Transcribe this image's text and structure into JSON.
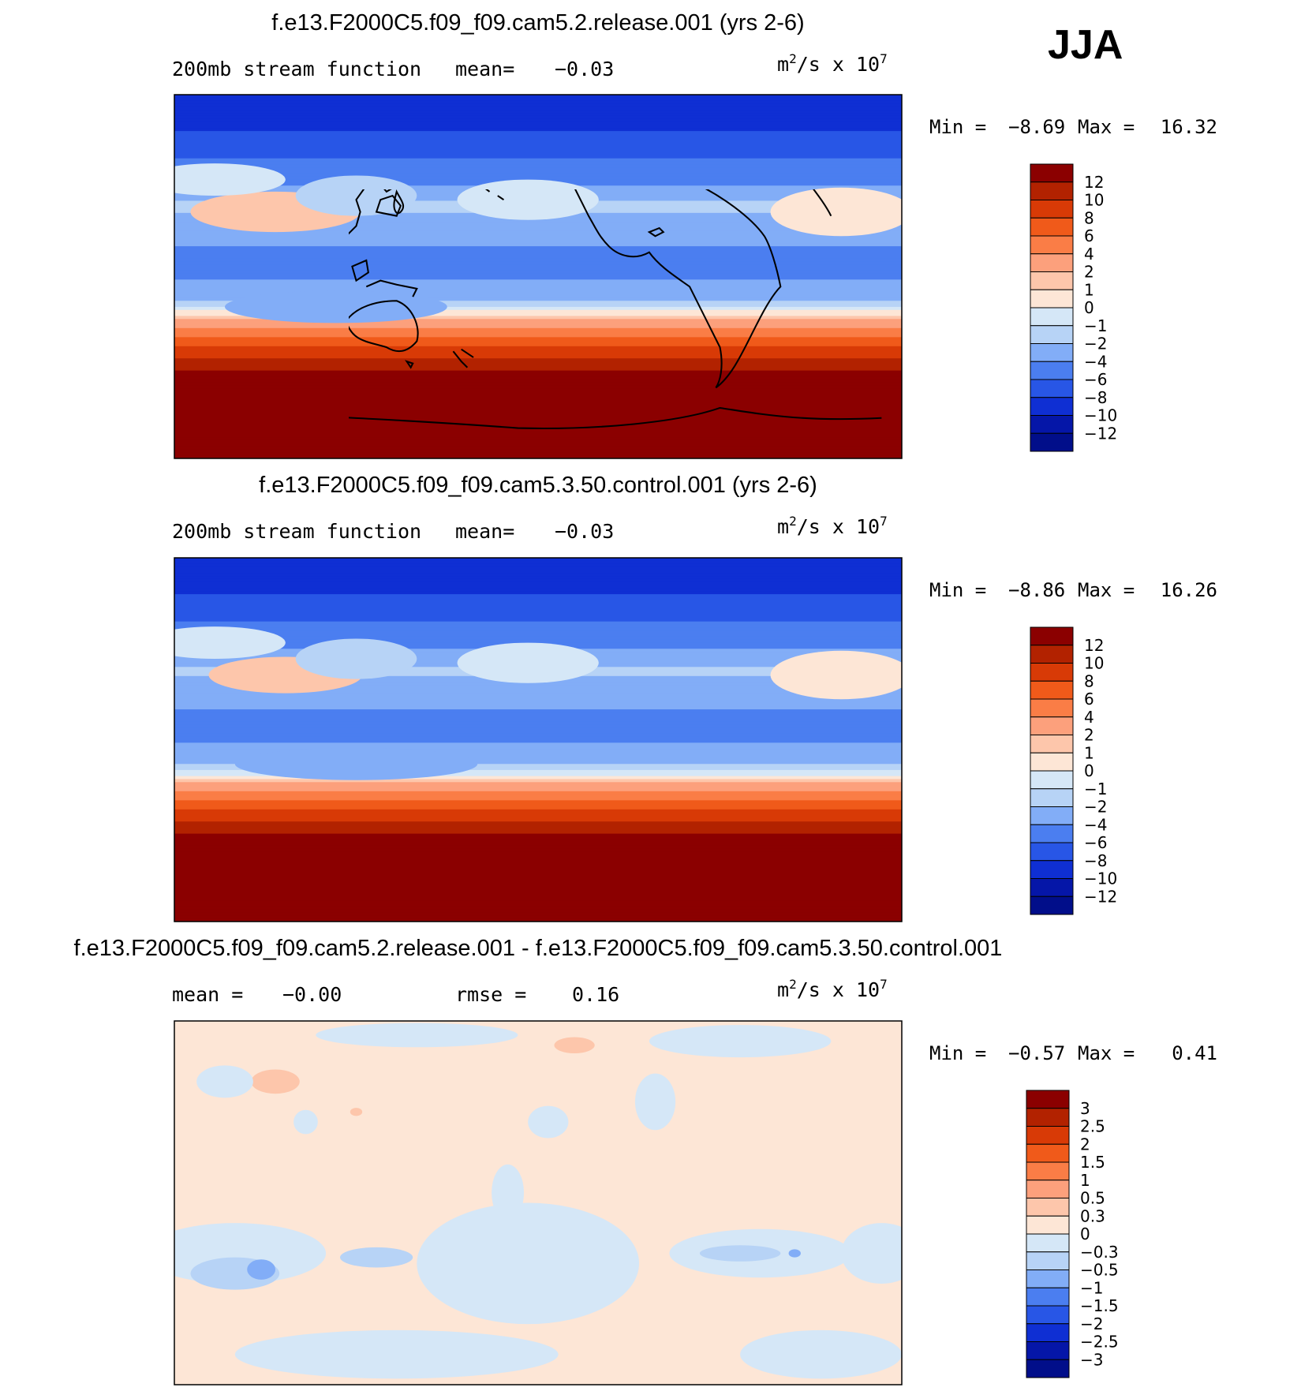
{
  "season": "JJA",
  "chart_data": [
    {
      "type": "heatmap",
      "title": "f.e13.F2000C5.f09_f09.cam5.2.release.001 (yrs 2-6)",
      "subtitle_left": "200mb stream function",
      "mean_label": "mean=",
      "mean_value": "−0.03",
      "units_base": "m",
      "units_exp1": "2",
      "units_mid": "/s x 10",
      "units_exp2": "7",
      "min_label": "Min =",
      "min_value": "−8.69",
      "max_label": "Max =",
      "max_value": "16.32",
      "xrange": [
        30,
        390
      ],
      "yrange": [
        -90,
        90
      ],
      "levels": [
        "12",
        "10",
        "8",
        "6",
        "4",
        "2",
        "1",
        "0",
        "−1",
        "−2",
        "−4",
        "−6",
        "−8",
        "−10",
        "−12"
      ],
      "colors": [
        "#8b0000",
        "#b22200",
        "#d83a06",
        "#f05a1a",
        "#fa7d46",
        "#fca07c",
        "#fdc6ab",
        "#fde6d6",
        "#d5e7f7",
        "#b7d3f6",
        "#82adf7",
        "#4b7ef0",
        "#2856e6",
        "#0f2fd3",
        "#0516a8",
        "#010e8a"
      ],
      "zonal_profile_lat": [
        90,
        75,
        65,
        55,
        45,
        35,
        25,
        15,
        5,
        -5,
        -15,
        -20,
        -25,
        -30,
        -35,
        -40,
        -45,
        -50,
        -55,
        -60,
        -90
      ],
      "zonal_profile_val": [
        -9,
        -8.5,
        -7,
        -5.5,
        -4,
        -1.5,
        -3,
        -4,
        -5,
        -3.5,
        -1.2,
        1.5,
        3.5,
        6,
        8,
        10,
        11.5,
        13,
        14,
        15,
        15
      ],
      "anomalies": [
        {
          "lon": 80,
          "lat": 32,
          "value": 1.4,
          "rlon": 42,
          "rlat": 10
        },
        {
          "lon": 360,
          "lat": 32,
          "value": 0.4,
          "rlon": 35,
          "rlat": 12
        },
        {
          "lon": 120,
          "lat": 40,
          "value": -1.2,
          "rlon": 30,
          "rlat": 10
        },
        {
          "lon": 205,
          "lat": 38,
          "value": -1.0,
          "rlon": 35,
          "rlat": 10
        },
        {
          "lon": 50,
          "lat": 48,
          "value": -1.0,
          "rlon": 35,
          "rlat": 8
        },
        {
          "lon": 110,
          "lat": -15,
          "value": -2.5,
          "rlon": 55,
          "rlat": 8
        }
      ]
    },
    {
      "type": "heatmap",
      "title": "f.e13.F2000C5.f09_f09.cam5.3.50.control.001 (yrs 2-6)",
      "subtitle_left": "200mb stream function",
      "mean_label": "mean=",
      "mean_value": "−0.03",
      "units_base": "m",
      "units_exp1": "2",
      "units_mid": "/s x 10",
      "units_exp2": "7",
      "min_label": "Min =",
      "min_value": "−8.86",
      "max_label": "Max =",
      "max_value": "16.26",
      "xrange": [
        30,
        390
      ],
      "yrange": [
        -90,
        90
      ],
      "levels": [
        "12",
        "10",
        "8",
        "6",
        "4",
        "2",
        "1",
        "0",
        "−1",
        "−2",
        "−4",
        "−6",
        "−8",
        "−10",
        "−12"
      ],
      "colors": [
        "#8b0000",
        "#b22200",
        "#d83a06",
        "#f05a1a",
        "#fa7d46",
        "#fca07c",
        "#fdc6ab",
        "#fde6d6",
        "#d5e7f7",
        "#b7d3f6",
        "#82adf7",
        "#4b7ef0",
        "#2856e6",
        "#0f2fd3",
        "#0516a8",
        "#010e8a"
      ],
      "zonal_profile_lat": [
        90,
        75,
        65,
        55,
        45,
        35,
        25,
        15,
        5,
        -5,
        -15,
        -20,
        -25,
        -30,
        -35,
        -40,
        -45,
        -50,
        -55,
        -60,
        -90
      ],
      "zonal_profile_val": [
        -9,
        -8.5,
        -7,
        -5.5,
        -4,
        -1.6,
        -3,
        -4,
        -5,
        -3.5,
        -1.3,
        1.4,
        3.5,
        6,
        8,
        10,
        11.5,
        13,
        14,
        15,
        15
      ],
      "anomalies": [
        {
          "lon": 85,
          "lat": 32,
          "value": 1.2,
          "rlon": 38,
          "rlat": 9
        },
        {
          "lon": 360,
          "lat": 32,
          "value": 0.4,
          "rlon": 35,
          "rlat": 12
        },
        {
          "lon": 120,
          "lat": 40,
          "value": -1.2,
          "rlon": 30,
          "rlat": 10
        },
        {
          "lon": 205,
          "lat": 38,
          "value": -1.0,
          "rlon": 35,
          "rlat": 10
        },
        {
          "lon": 50,
          "lat": 48,
          "value": -1.0,
          "rlon": 35,
          "rlat": 8
        },
        {
          "lon": 120,
          "lat": -12,
          "value": -2.8,
          "rlon": 60,
          "rlat": 8
        }
      ]
    },
    {
      "type": "heatmap",
      "title": "f.e13.F2000C5.f09_f09.cam5.2.release.001 - f.e13.F2000C5.f09_f09.cam5.3.50.control.001",
      "subtitle_left": "mean =",
      "mean_value": "−0.00",
      "rmse_label": "rmse =",
      "rmse_value": "0.16",
      "units_base": "m",
      "units_exp1": "2",
      "units_mid": "/s x 10",
      "units_exp2": "7",
      "min_label": "Min =",
      "min_value": "−0.57",
      "max_label": "Max =",
      "max_value": "0.41",
      "xrange": [
        30,
        390
      ],
      "yrange": [
        -90,
        90
      ],
      "levels": [
        "3",
        "2.5",
        "2",
        "1.5",
        "1",
        "0.5",
        "0.3",
        "0",
        "−0.3",
        "−0.5",
        "−1",
        "−1.5",
        "−2",
        "−2.5",
        "−3"
      ],
      "colors": [
        "#8b0000",
        "#b22200",
        "#d83a06",
        "#f05a1a",
        "#fa7d46",
        "#fca07c",
        "#fdc6ab",
        "#fde6d6",
        "#d5e7f7",
        "#b7d3f6",
        "#82adf7",
        "#4b7ef0",
        "#2856e6",
        "#0f2fd3",
        "#0516a8",
        "#010e8a"
      ],
      "background_value": 0.1,
      "anomalies": [
        {
          "lon": 80,
          "lat": 60,
          "value": 0.45,
          "rlon": 12,
          "rlat": 6
        },
        {
          "lon": 228,
          "lat": 78,
          "value": 0.4,
          "rlon": 10,
          "rlat": 4
        },
        {
          "lon": 120,
          "lat": 45,
          "value": 0.4,
          "rlon": 3,
          "rlat": 2
        },
        {
          "lon": 150,
          "lat": 83,
          "value": -0.1,
          "rlon": 50,
          "rlat": 6
        },
        {
          "lon": 310,
          "lat": 80,
          "value": -0.1,
          "rlon": 45,
          "rlat": 8
        },
        {
          "lon": 55,
          "lat": 60,
          "value": -0.1,
          "rlon": 14,
          "rlat": 8
        },
        {
          "lon": 268,
          "lat": 50,
          "value": -0.1,
          "rlon": 10,
          "rlat": 14
        },
        {
          "lon": 95,
          "lat": 40,
          "value": -0.1,
          "rlon": 6,
          "rlat": 6
        },
        {
          "lon": 215,
          "lat": 40,
          "value": -0.1,
          "rlon": 10,
          "rlat": 8
        },
        {
          "lon": 195,
          "lat": 5,
          "value": -0.1,
          "rlon": 8,
          "rlat": 14
        },
        {
          "lon": 60,
          "lat": -25,
          "value": -0.1,
          "rlon": 45,
          "rlat": 15
        },
        {
          "lon": 205,
          "lat": -30,
          "value": -0.1,
          "rlon": 55,
          "rlat": 30
        },
        {
          "lon": 320,
          "lat": -25,
          "value": -0.1,
          "rlon": 45,
          "rlat": 12
        },
        {
          "lon": 380,
          "lat": -25,
          "value": -0.1,
          "rlon": 20,
          "rlat": 15
        },
        {
          "lon": 140,
          "lat": -75,
          "value": -0.1,
          "rlon": 80,
          "rlat": 12
        },
        {
          "lon": 350,
          "lat": -75,
          "value": -0.1,
          "rlon": 40,
          "rlat": 12
        },
        {
          "lon": 60,
          "lat": -35,
          "value": -0.35,
          "rlon": 22,
          "rlat": 8
        },
        {
          "lon": 130,
          "lat": -27,
          "value": -0.35,
          "rlon": 18,
          "rlat": 5
        },
        {
          "lon": 310,
          "lat": -25,
          "value": -0.35,
          "rlon": 20,
          "rlat": 4
        },
        {
          "lon": 73,
          "lat": -33,
          "value": -0.6,
          "rlon": 7,
          "rlat": 5
        },
        {
          "lon": 337,
          "lat": -25,
          "value": -0.6,
          "rlon": 3,
          "rlat": 2
        }
      ]
    }
  ]
}
